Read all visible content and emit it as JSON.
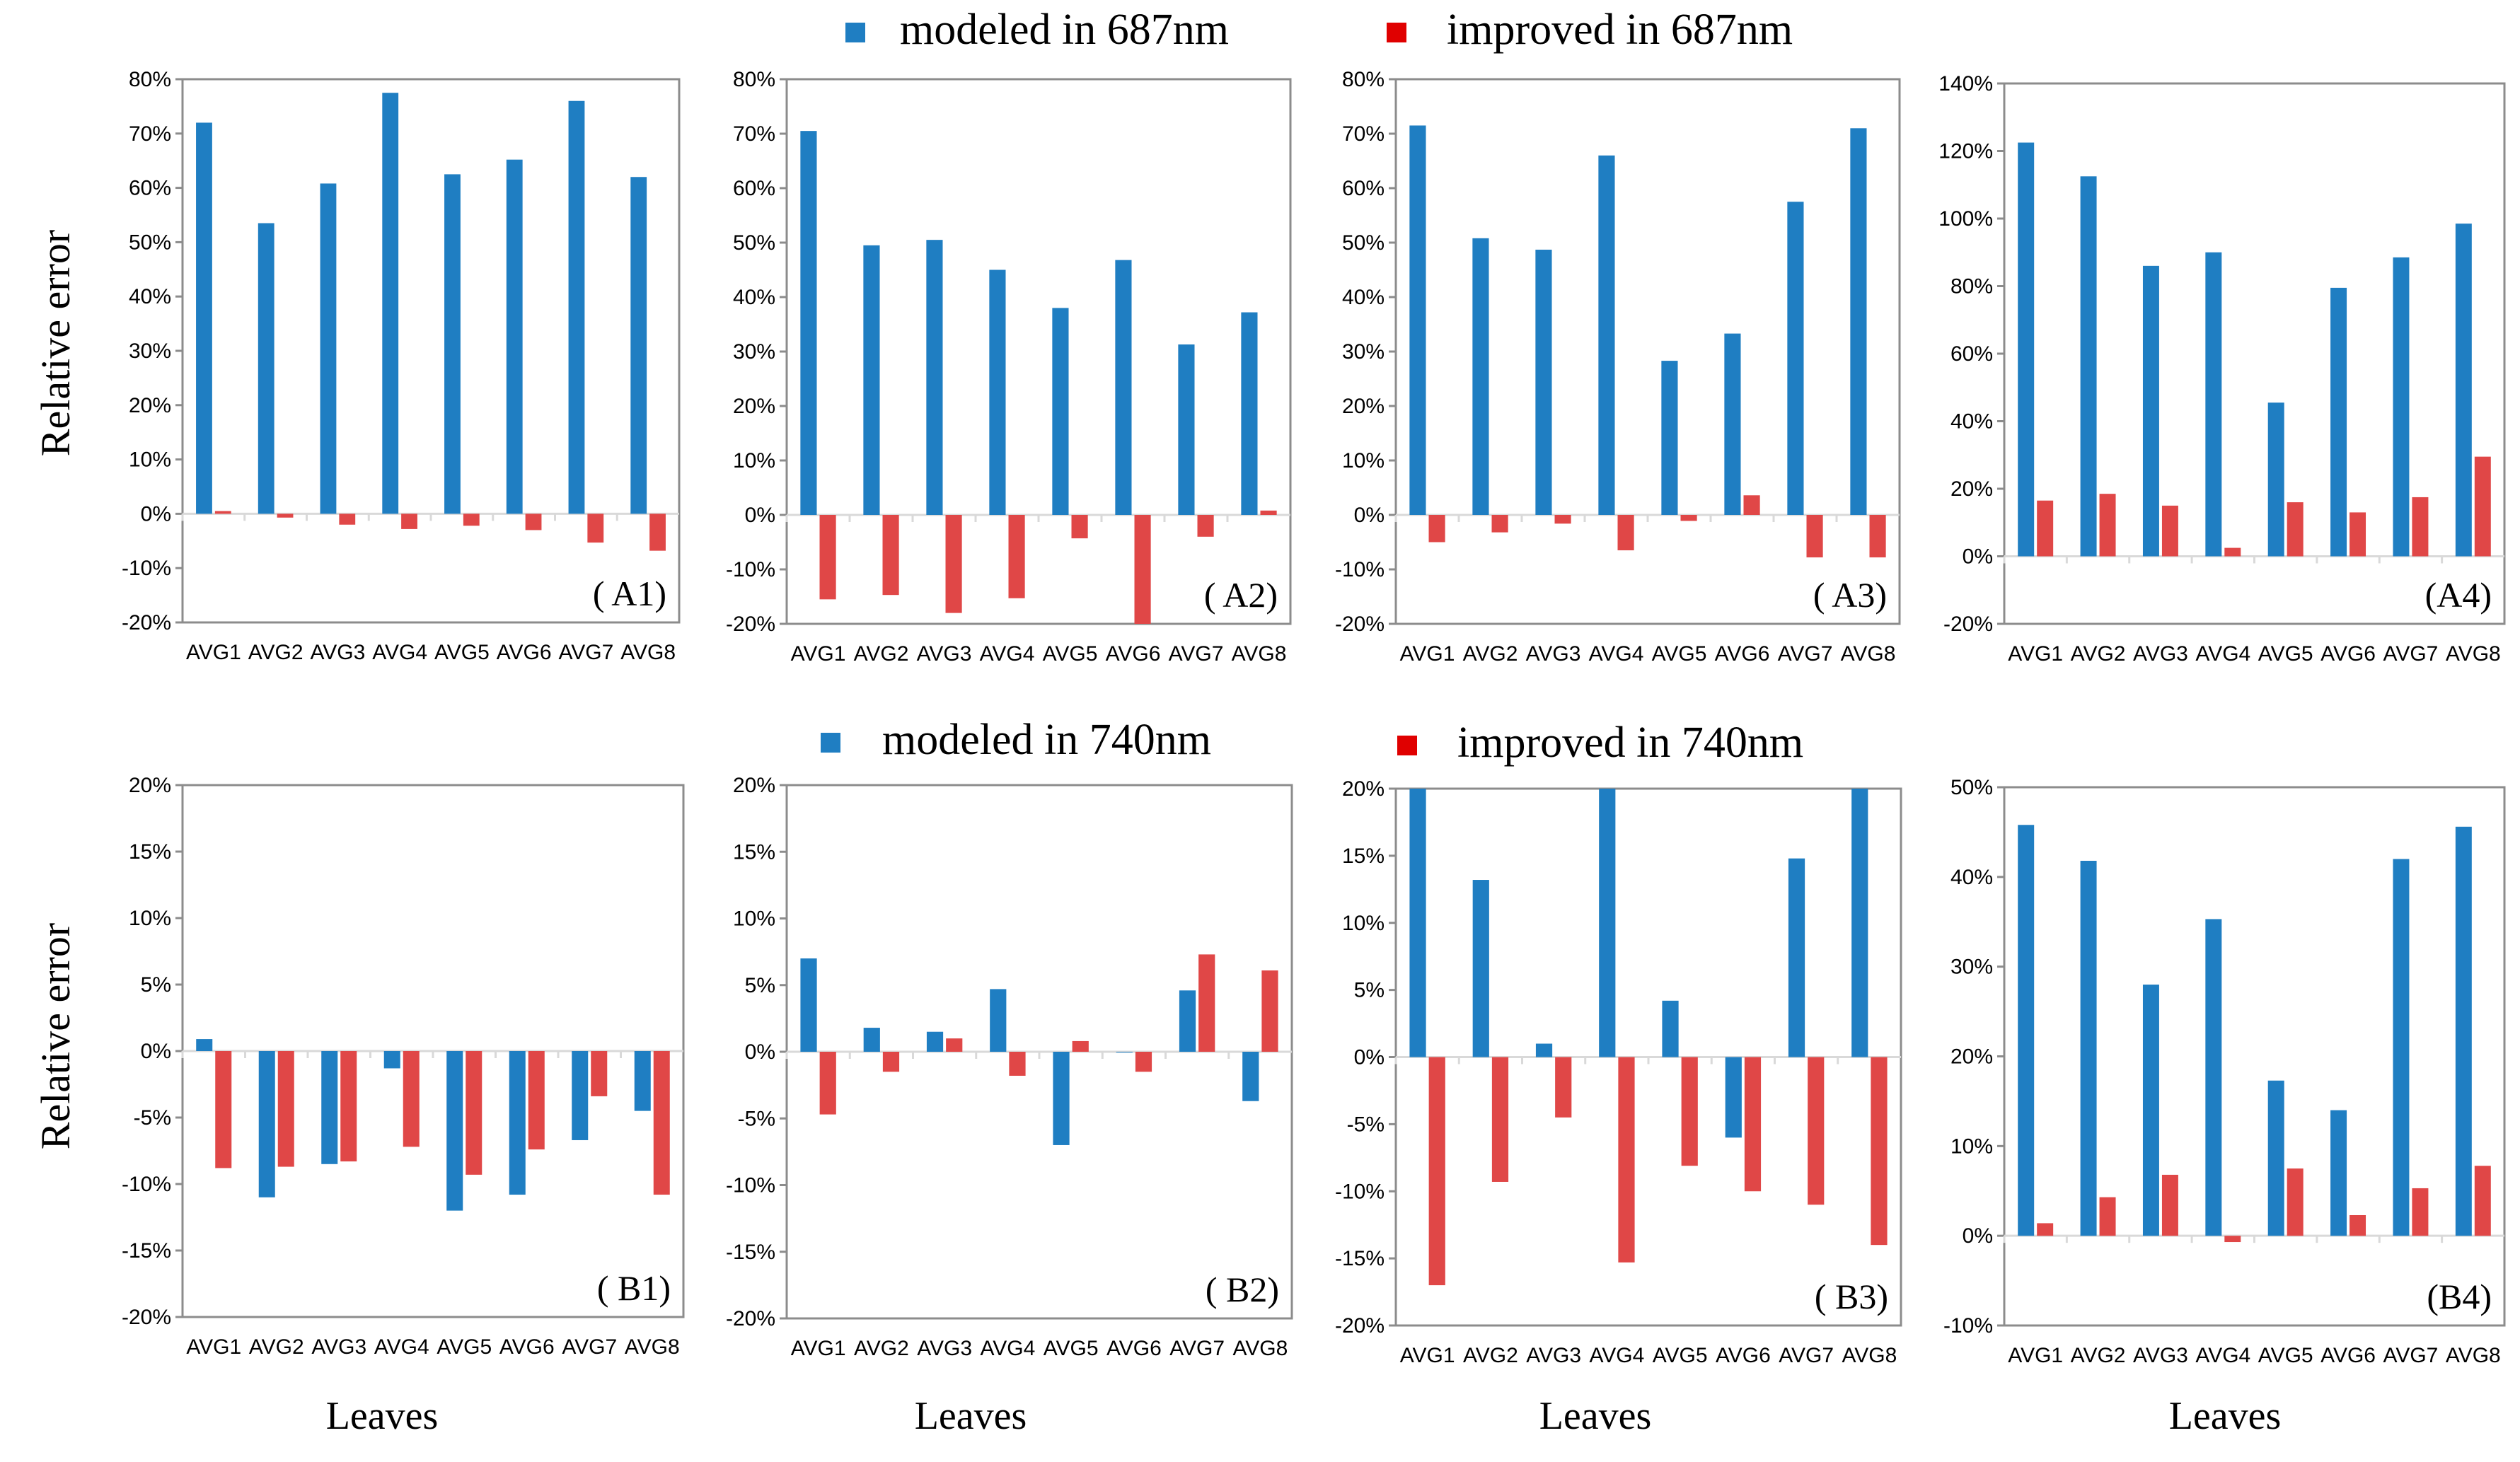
{
  "legend": {
    "top": {
      "series1": "modeled in 687nm",
      "series2": "improved in 687nm"
    },
    "bottom": {
      "series1": "modeled in 740nm",
      "series2": "improved in 740nm"
    }
  },
  "axis_titles": {
    "ylabel_top": "Relative error",
    "ylabel_bottom": "Relative error",
    "xlabel": "Leaves"
  },
  "colors": {
    "modeled": "#1f7ec2",
    "improved": "#e04747",
    "frame": "#8c8c8c",
    "grid": "#d9d9d9"
  },
  "chart_data": [
    {
      "type": "bar",
      "panel_label": "( A1)",
      "categories": [
        "AVG1",
        "AVG2",
        "AVG3",
        "AVG4",
        "AVG5",
        "AVG6",
        "AVG7",
        "AVG8"
      ],
      "ylim": [
        -20,
        80
      ],
      "yticks": [
        80,
        70,
        60,
        50,
        40,
        30,
        20,
        10,
        0,
        -10,
        -20
      ],
      "tick_labels": [
        "80%",
        "70%",
        "60%",
        "50%",
        "40%",
        "30%",
        "20%",
        "10%",
        "0%",
        "-10%",
        "-20%"
      ],
      "series": [
        {
          "name": "modeled in 687nm",
          "values": [
            72,
            53.5,
            60.8,
            77.5,
            62.5,
            65.2,
            76,
            62
          ]
        },
        {
          "name": "improved in 687nm",
          "values": [
            0.5,
            -0.7,
            -2,
            -2.8,
            -2.2,
            -3,
            -5.3,
            -6.8
          ]
        }
      ]
    },
    {
      "type": "bar",
      "panel_label": "( A2)",
      "categories": [
        "AVG1",
        "AVG2",
        "AVG3",
        "AVG4",
        "AVG5",
        "AVG6",
        "AVG7",
        "AVG8"
      ],
      "ylim": [
        -20,
        80
      ],
      "yticks": [
        80,
        70,
        60,
        50,
        40,
        30,
        20,
        10,
        0,
        -10,
        -20
      ],
      "tick_labels": [
        "80%",
        "70%",
        "60%",
        "50%",
        "40%",
        "30%",
        "20%",
        "10%",
        "0%",
        "-10%",
        "-20%"
      ],
      "series": [
        {
          "name": "modeled in 687nm",
          "values": [
            70.5,
            49.5,
            50.5,
            45,
            38,
            46.8,
            31.3,
            37.2
          ]
        },
        {
          "name": "improved in 687nm",
          "values": [
            -15.5,
            -14.7,
            -18,
            -15.3,
            -4.3,
            -21,
            -4,
            0.8
          ]
        }
      ]
    },
    {
      "type": "bar",
      "panel_label": "( A3)",
      "categories": [
        "AVG1",
        "AVG2",
        "AVG3",
        "AVG4",
        "AVG5",
        "AVG6",
        "AVG7",
        "AVG8"
      ],
      "ylim": [
        -20,
        80
      ],
      "yticks": [
        80,
        70,
        60,
        50,
        40,
        30,
        20,
        10,
        0,
        -10,
        -20
      ],
      "tick_labels": [
        "80%",
        "70%",
        "60%",
        "50%",
        "40%",
        "30%",
        "20%",
        "10%",
        "0%",
        "-10%",
        "-20%"
      ],
      "series": [
        {
          "name": "modeled in 687nm",
          "values": [
            71.5,
            50.8,
            48.7,
            66,
            28.3,
            33.3,
            57.5,
            71
          ]
        },
        {
          "name": "improved in 687nm",
          "values": [
            -5,
            -3.2,
            -1.6,
            -6.5,
            -1.1,
            3.6,
            -7.8,
            -7.8
          ]
        }
      ]
    },
    {
      "type": "bar",
      "panel_label": "(A4)",
      "categories": [
        "AVG1",
        "AVG2",
        "AVG3",
        "AVG4",
        "AVG5",
        "AVG6",
        "AVG7",
        "AVG8"
      ],
      "ylim": [
        -20,
        140
      ],
      "yticks": [
        140,
        120,
        100,
        80,
        60,
        40,
        20,
        0,
        -20
      ],
      "tick_labels": [
        "140%",
        "120%",
        "100%",
        "80%",
        "60%",
        "40%",
        "20%",
        "0%",
        "-20%"
      ],
      "series": [
        {
          "name": "modeled in 687nm",
          "values": [
            122.5,
            112.5,
            86,
            90,
            45.5,
            79.5,
            88.5,
            98.5
          ]
        },
        {
          "name": "improved in 687nm",
          "values": [
            16.5,
            18.5,
            15,
            2.5,
            16,
            13,
            17.5,
            29.5
          ]
        }
      ]
    },
    {
      "type": "bar",
      "panel_label": "( B1)",
      "categories": [
        "AVG1",
        "AVG2",
        "AVG3",
        "AVG4",
        "AVG5",
        "AVG6",
        "AVG7",
        "AVG8"
      ],
      "ylim": [
        -20,
        20
      ],
      "yticks": [
        20,
        15,
        10,
        5,
        0,
        -5,
        -10,
        -15,
        -20
      ],
      "tick_labels": [
        "20%",
        "15%",
        "10%",
        "5%",
        "0%",
        "-5%",
        "-10%",
        "-15%",
        "-20%"
      ],
      "series": [
        {
          "name": "modeled in 740nm",
          "values": [
            0.9,
            -11,
            -8.5,
            -1.3,
            -12,
            -10.8,
            -6.7,
            -4.5
          ]
        },
        {
          "name": "improved in 740nm",
          "values": [
            -8.8,
            -8.7,
            -8.3,
            -7.2,
            -9.3,
            -7.4,
            -3.4,
            -10.8
          ]
        }
      ]
    },
    {
      "type": "bar",
      "panel_label": "( B2)",
      "categories": [
        "AVG1",
        "AVG2",
        "AVG3",
        "AVG4",
        "AVG5",
        "AVG6",
        "AVG7",
        "AVG8"
      ],
      "ylim": [
        -20,
        20
      ],
      "yticks": [
        20,
        15,
        10,
        5,
        0,
        -5,
        -10,
        -15,
        -20
      ],
      "tick_labels": [
        "20%",
        "15%",
        "10%",
        "5%",
        "0%",
        "-5%",
        "-10%",
        "-15%",
        "-20%"
      ],
      "series": [
        {
          "name": "modeled in 740nm",
          "values": [
            7,
            1.8,
            1.5,
            4.7,
            -7,
            0,
            4.6,
            -3.7
          ]
        },
        {
          "name": "improved in 740nm",
          "values": [
            -4.7,
            -1.5,
            1,
            -1.8,
            0.8,
            -1.5,
            7.3,
            6.1
          ]
        }
      ]
    },
    {
      "type": "bar",
      "panel_label": "( B3)",
      "categories": [
        "AVG1",
        "AVG2",
        "AVG3",
        "AVG4",
        "AVG5",
        "AVG6",
        "AVG7",
        "AVG8"
      ],
      "ylim": [
        -20,
        20
      ],
      "yticks": [
        20,
        15,
        10,
        5,
        0,
        -5,
        -10,
        -15,
        -20
      ],
      "tick_labels": [
        "20%",
        "15%",
        "10%",
        "5%",
        "0%",
        "-5%",
        "-10%",
        "-15%",
        "-20%"
      ],
      "series": [
        {
          "name": "modeled in 740nm",
          "values": [
            20,
            13.2,
            1,
            20,
            4.2,
            -6,
            14.8,
            20
          ]
        },
        {
          "name": "improved in 740nm",
          "values": [
            -17,
            -9.3,
            -4.5,
            -15.3,
            -8.1,
            -10,
            -11,
            -14
          ]
        }
      ]
    },
    {
      "type": "bar",
      "panel_label": "(B4)",
      "categories": [
        "AVG1",
        "AVG2",
        "AVG3",
        "AVG4",
        "AVG5",
        "AVG6",
        "AVG7",
        "AVG8"
      ],
      "ylim": [
        -10,
        50
      ],
      "yticks": [
        50,
        40,
        30,
        20,
        10,
        0,
        -10
      ],
      "tick_labels": [
        "50%",
        "40%",
        "30%",
        "20%",
        "10%",
        "0%",
        "-10%"
      ],
      "series": [
        {
          "name": "modeled in 740nm",
          "values": [
            45.8,
            41.8,
            28,
            35.3,
            17.3,
            14,
            42,
            45.6
          ]
        },
        {
          "name": "improved in 740nm",
          "values": [
            1.4,
            4.3,
            6.8,
            -0.7,
            7.5,
            2.3,
            5.3,
            7.8
          ]
        }
      ]
    }
  ]
}
